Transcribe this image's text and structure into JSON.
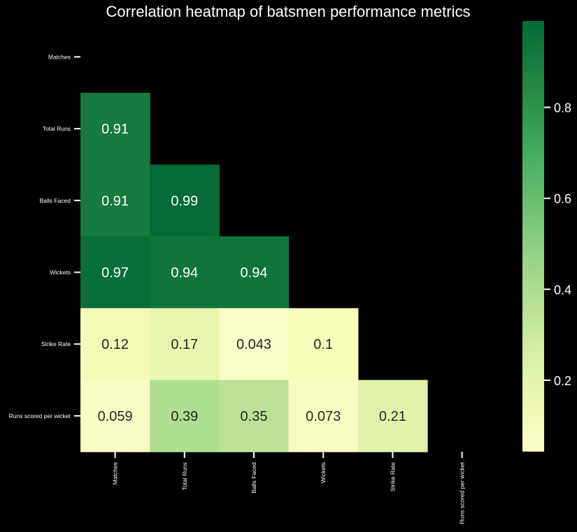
{
  "chart_data": {
    "type": "heatmap",
    "title": "Correlation heatmap of batsmen performance metrics",
    "rows": [
      "Matches",
      "Total Runs",
      "Balls Faced",
      "Wickets",
      "Strike Rate",
      "Runs scored per wicket"
    ],
    "cols": [
      "Matches",
      "Total Runs",
      "Balls Faced",
      "Wickets",
      "Strike Rate",
      "Runs scored per wicket"
    ],
    "mask": "upper-triangle-and-diagonal",
    "values": [
      [
        null,
        null,
        null,
        null,
        null,
        null
      ],
      [
        0.91,
        null,
        null,
        null,
        null,
        null
      ],
      [
        0.91,
        0.99,
        null,
        null,
        null,
        null
      ],
      [
        0.97,
        0.94,
        0.94,
        null,
        null,
        null
      ],
      [
        0.12,
        0.17,
        0.043,
        0.1,
        null,
        null
      ],
      [
        0.059,
        0.39,
        0.35,
        0.073,
        0.21,
        null
      ]
    ],
    "value_labels": [
      [
        "",
        "",
        "",
        "",
        "",
        ""
      ],
      [
        "0.91",
        "",
        "",
        "",
        "",
        ""
      ],
      [
        "0.91",
        "0.99",
        "",
        "",
        "",
        ""
      ],
      [
        "0.97",
        "0.94",
        "0.94",
        "",
        "",
        ""
      ],
      [
        "0.12",
        "0.17",
        "0.043",
        "0.1",
        "",
        ""
      ],
      [
        "0.059",
        "0.39",
        "0.35",
        "0.073",
        "0.21",
        ""
      ]
    ],
    "colormap": "YlGn",
    "color_range": [
      0.043,
      0.99
    ],
    "colorbar_ticks": [
      0.2,
      0.4,
      0.6,
      0.8
    ],
    "colorbar_tick_labels": [
      "0.2",
      "0.4",
      "0.6",
      "0.8"
    ],
    "background": "#000000",
    "text_color": "#ffffff"
  }
}
